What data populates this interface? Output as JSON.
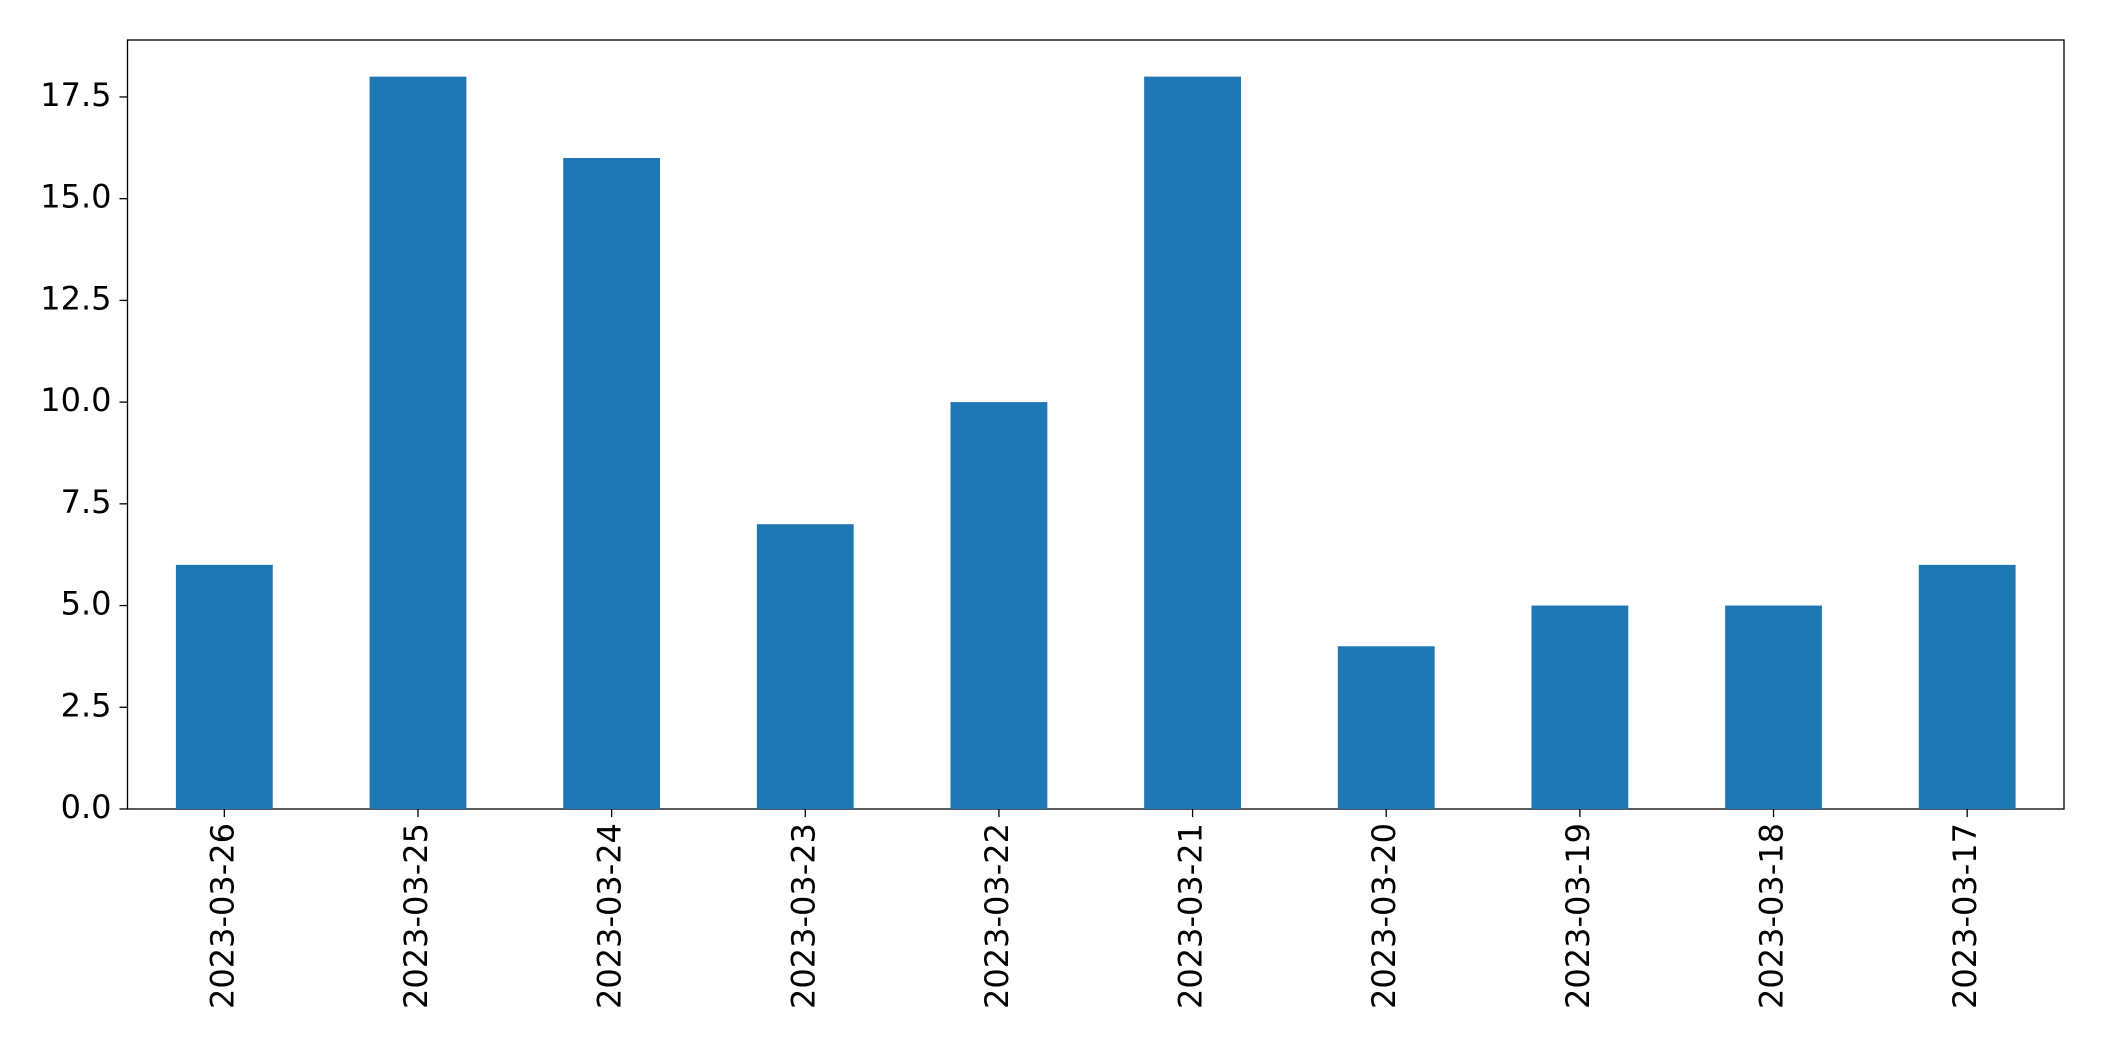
{
  "chart_data": {
    "type": "bar",
    "categories": [
      "2023-03-26",
      "2023-03-25",
      "2023-03-24",
      "2023-03-23",
      "2023-03-22",
      "2023-03-21",
      "2023-03-20",
      "2023-03-19",
      "2023-03-18",
      "2023-03-17"
    ],
    "values": [
      6,
      18,
      16,
      7,
      10,
      18,
      4,
      5,
      5,
      6
    ],
    "color": "#1f77b4",
    "ylim": [
      0,
      18.9
    ],
    "yticks": [
      {
        "value": 0,
        "label": "0.0"
      },
      2.5,
      {
        "value": 5,
        "label": "5.0"
      },
      7.5,
      {
        "value": 10,
        "label": "10.0"
      },
      12.5,
      {
        "value": 15,
        "label": "15.0"
      },
      17.5
    ],
    "grid": false
  }
}
